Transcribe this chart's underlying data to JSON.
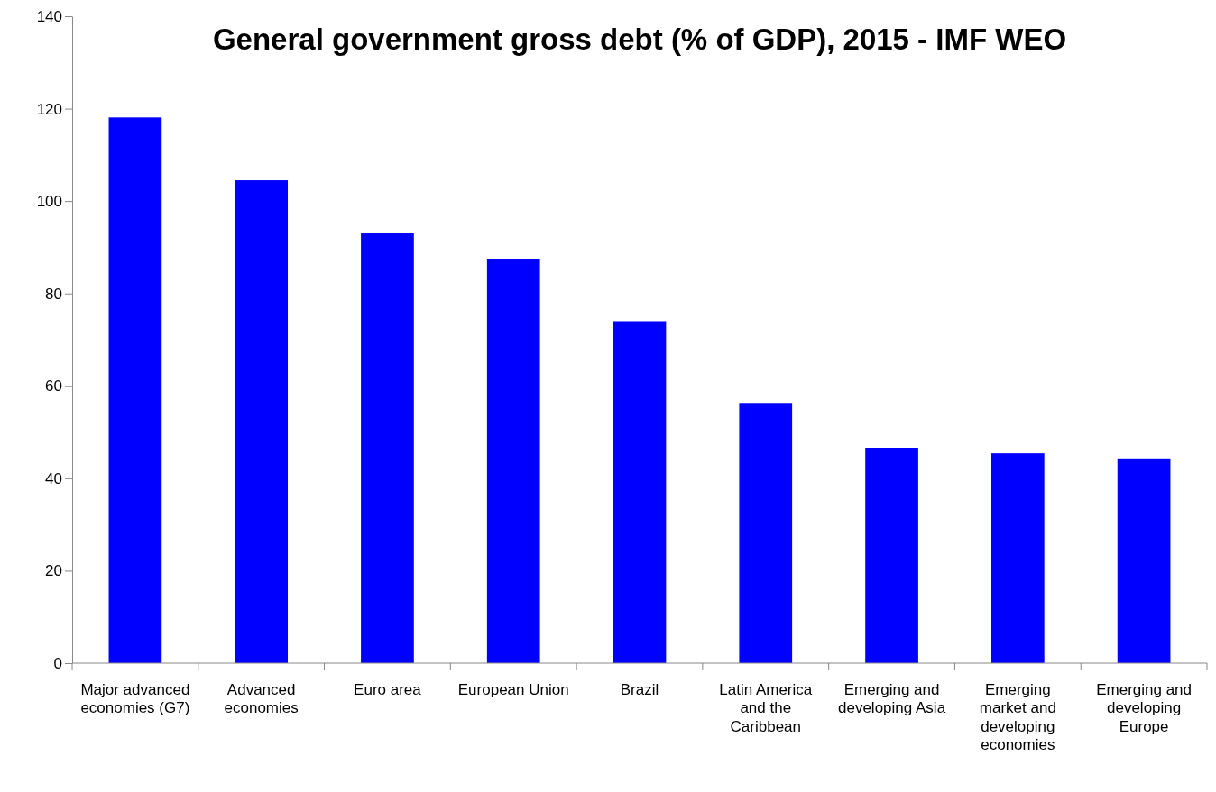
{
  "chart_data": {
    "type": "bar",
    "title": "General government gross debt (% of GDP), 2015 - IMF WEO",
    "categories": [
      "Major advanced economies (G7)",
      "Advanced economies",
      "Euro area",
      "European Union",
      "Brazil",
      "Latin America and the Caribbean",
      "Emerging and developing Asia",
      "Emerging market and developing economies",
      "Emerging and developing Europe"
    ],
    "values": [
      118.1,
      104.5,
      93.0,
      87.4,
      74.0,
      56.3,
      46.6,
      45.4,
      44.3
    ],
    "color": "#0000ff",
    "ylim": [
      0,
      140
    ],
    "yticks": [
      0,
      20,
      40,
      60,
      80,
      100,
      120,
      140
    ],
    "grid": false,
    "legend": false
  }
}
